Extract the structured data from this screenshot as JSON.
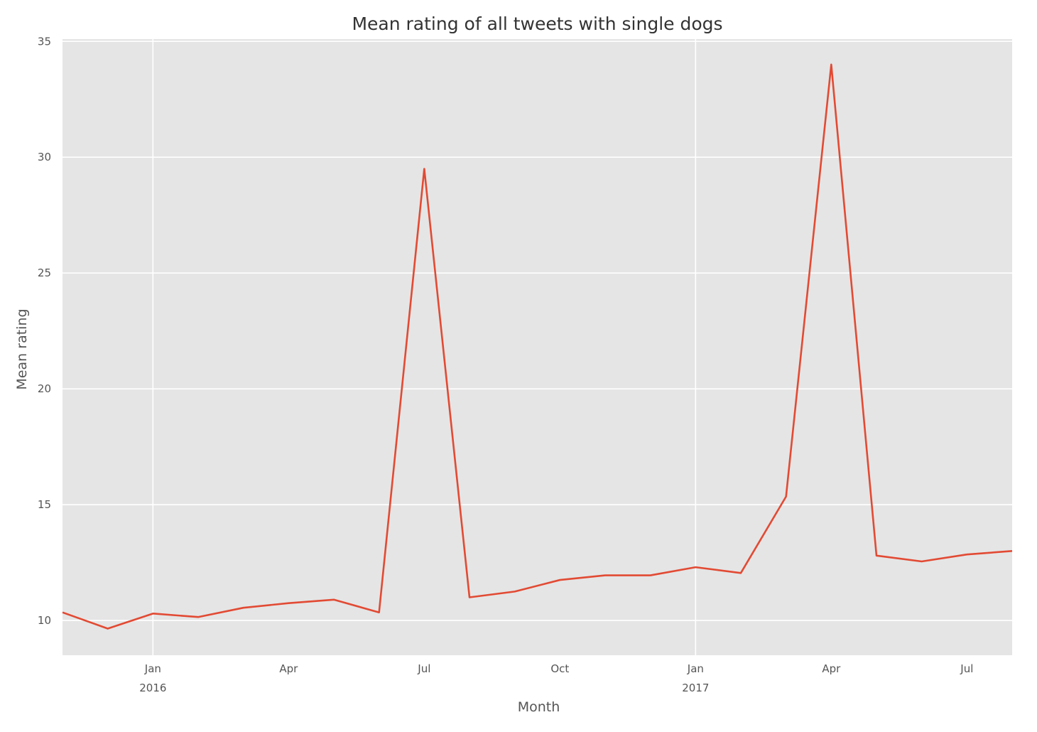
{
  "chart_data": {
    "type": "line",
    "title": "Mean rating of all tweets with single dogs",
    "xlabel": "Month",
    "ylabel": "Mean rating",
    "ylim": [
      8.5,
      35.1
    ],
    "xlim": [
      0,
      21
    ],
    "grid": true,
    "y_ticks": [
      10,
      15,
      20,
      25,
      30,
      35
    ],
    "x_ticks": [
      {
        "x": 2,
        "label": "Jan",
        "sublabel": "2016"
      },
      {
        "x": 5,
        "label": "Apr",
        "sublabel": ""
      },
      {
        "x": 8,
        "label": "Jul",
        "sublabel": ""
      },
      {
        "x": 11,
        "label": "Oct",
        "sublabel": ""
      },
      {
        "x": 14,
        "label": "Jan",
        "sublabel": "2017"
      },
      {
        "x": 17,
        "label": "Apr",
        "sublabel": ""
      },
      {
        "x": 20,
        "label": "Jul",
        "sublabel": ""
      }
    ],
    "major_x_ticks": [
      2,
      14
    ],
    "series": [
      {
        "name": "Mean rating",
        "color": "#E24A33",
        "x": [
          0,
          1,
          2,
          3,
          4,
          5,
          6,
          7,
          8,
          9,
          10,
          11,
          12,
          13,
          14,
          15,
          16,
          17,
          18,
          19,
          20,
          21
        ],
        "values": [
          10.35,
          9.65,
          10.3,
          10.15,
          10.55,
          10.75,
          10.9,
          10.35,
          29.5,
          11.0,
          11.25,
          11.75,
          11.95,
          11.95,
          12.3,
          12.05,
          15.35,
          34.0,
          12.8,
          12.55,
          12.85,
          13.0
        ]
      }
    ]
  },
  "colors": {
    "plot_bg": "#E5E5E5",
    "grid": "#FFFFFF",
    "text": "#555555",
    "title": "#333333"
  }
}
